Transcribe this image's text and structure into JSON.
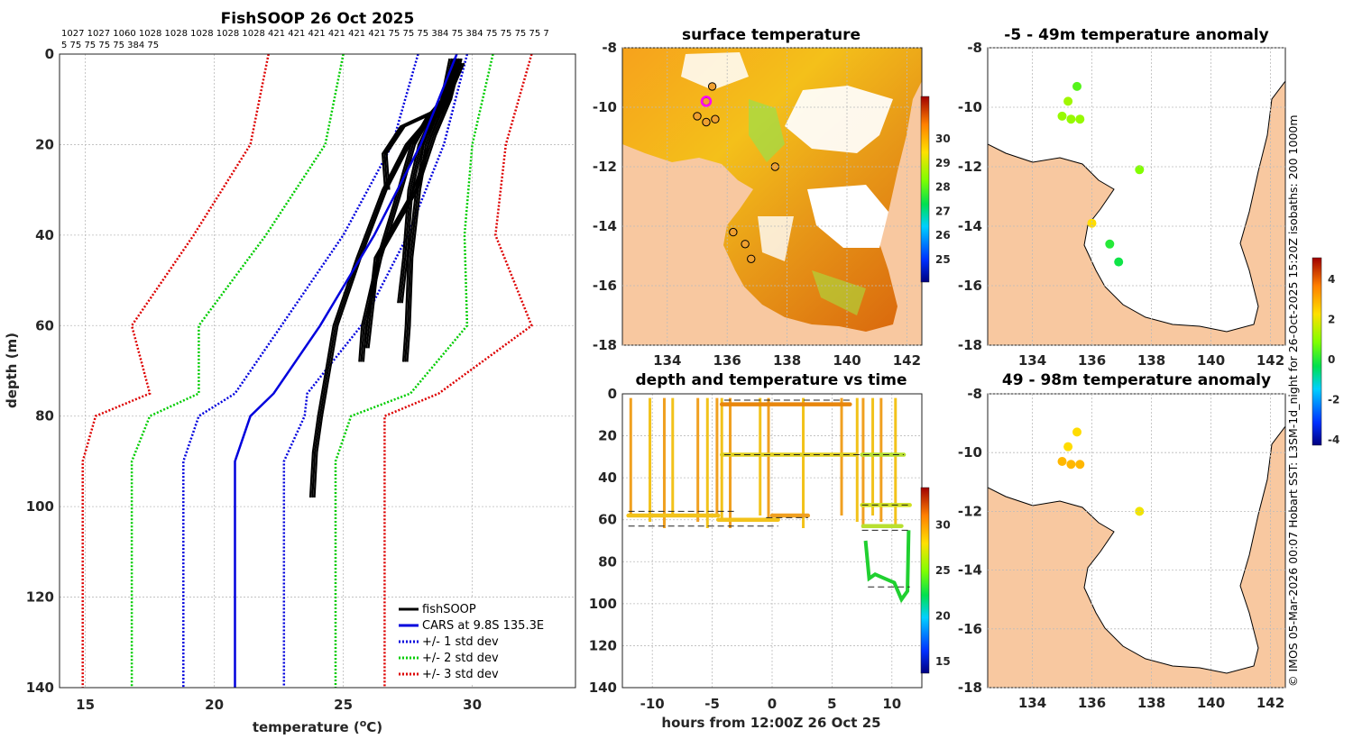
{
  "chart_data": [
    {
      "type": "line",
      "title": "FishSOOP 26 Oct 2025",
      "note_line1": "1027 1027 1060 1028 1028 1028 1028 1028 421 421 421 421 421 421 75 75 75 384 75 384 75 75 75 75 7",
      "note_line2": "5 75 75 75 75 384 75",
      "xlabel": "temperature (°C)",
      "ylabel": "depth (m)",
      "xlim": [
        14,
        34
      ],
      "ylim": [
        140,
        0
      ],
      "xticks": [
        15,
        20,
        25,
        30
      ],
      "yticks": [
        0,
        20,
        40,
        60,
        80,
        100,
        120,
        140
      ],
      "legend": [
        "fishSOOP",
        "CARS at 9.8S 135.3E",
        "+/- 1 std dev",
        "+/- 2 std dev",
        "+/- 3 std dev"
      ],
      "colors": {
        "fishSOOP": "#000000",
        "cars": "#0000dd",
        "sd1": "#0000dd",
        "sd2": "#00cc00",
        "sd3": "#dd0000"
      },
      "cars_depth": [
        0,
        20,
        40,
        60,
        75,
        80,
        90,
        140
      ],
      "cars_mean": [
        29.4,
        28.0,
        26.2,
        24.1,
        22.3,
        21.4,
        20.8,
        20.8
      ],
      "sd1_left": [
        27.9,
        26.9,
        25.0,
        22.6,
        20.8,
        19.4,
        18.8,
        18.8
      ],
      "sd1_right": [
        29.8,
        28.9,
        27.5,
        25.7,
        23.6,
        23.5,
        22.7,
        22.7
      ],
      "sd2_left": [
        25.0,
        24.3,
        22.0,
        19.4,
        19.4,
        17.5,
        16.8,
        16.8
      ],
      "sd2_right": [
        30.8,
        30.0,
        29.7,
        29.8,
        27.6,
        25.3,
        24.7,
        24.7
      ],
      "sd3_left": [
        22.1,
        21.4,
        19.2,
        16.8,
        17.5,
        15.4,
        14.9,
        14.9
      ],
      "sd3_right": [
        32.3,
        31.3,
        30.9,
        32.3,
        28.7,
        26.6,
        26.6,
        26.6
      ],
      "profiles": [
        {
          "depth": [
            1,
            10,
            14,
            20,
            30,
            45,
            60,
            70,
            80,
            88,
            98
          ],
          "temp": [
            29.4,
            29.0,
            28.4,
            27.5,
            26.6,
            25.6,
            24.7,
            24.4,
            24.1,
            23.9,
            23.8
          ]
        },
        {
          "depth": [
            1,
            10,
            14,
            20,
            30,
            45,
            60,
            68
          ],
          "temp": [
            29.3,
            28.9,
            28.3,
            27.7,
            27.2,
            26.4,
            25.8,
            25.7
          ]
        },
        {
          "depth": [
            1,
            10,
            14,
            20,
            30,
            45,
            60,
            68
          ],
          "temp": [
            29.5,
            29.1,
            28.6,
            28.2,
            27.9,
            27.6,
            27.5,
            27.4
          ]
        },
        {
          "depth": [
            2,
            10,
            14,
            20,
            30,
            45,
            55
          ],
          "temp": [
            29.6,
            29.0,
            28.5,
            28.0,
            27.6,
            27.4,
            27.2
          ]
        },
        {
          "depth": [
            1,
            12,
            16,
            22,
            30
          ],
          "temp": [
            29.2,
            28.8,
            27.3,
            26.6,
            26.7
          ]
        },
        {
          "depth": [
            1,
            10,
            18,
            30,
            45,
            65
          ],
          "temp": [
            29.5,
            29.1,
            28.5,
            27.8,
            26.3,
            25.9
          ]
        }
      ]
    },
    {
      "type": "heatmap",
      "title": "surface temperature",
      "xlim": [
        132.5,
        142.5
      ],
      "ylim": [
        -18,
        -8
      ],
      "xticks": [
        134,
        136,
        138,
        140,
        142
      ],
      "yticks": [
        -8,
        -10,
        -12,
        -14,
        -16,
        -18
      ],
      "colorbar_ticks": [
        25,
        26,
        27,
        28,
        29,
        30
      ],
      "stations": [
        [
          135.3,
          -9.8
        ],
        [
          135.5,
          -9.3
        ],
        [
          135.0,
          -10.3
        ],
        [
          135.3,
          -10.5
        ],
        [
          135.6,
          -10.4
        ],
        [
          137.6,
          -12.0
        ],
        [
          136.2,
          -14.2
        ],
        [
          136.6,
          -14.6
        ],
        [
          136.8,
          -15.1
        ]
      ]
    },
    {
      "type": "scatter",
      "title": "depth and temperature vs time",
      "xlabel": "hours from 12:00Z 26 Oct 25",
      "xlim": [
        -12.5,
        12.5
      ],
      "ylim": [
        140,
        0
      ],
      "xticks": [
        -10,
        -5,
        0,
        5,
        10
      ],
      "yticks": [
        0,
        20,
        40,
        60,
        80,
        100,
        120,
        140
      ],
      "colorbar_ticks": [
        15,
        20,
        25,
        30
      ],
      "dashed_depths": [
        [
          -4.0,
          6.5,
          3
        ],
        [
          -4.0,
          11.0,
          29
        ],
        [
          -12.0,
          -3.0,
          56
        ],
        [
          -12.0,
          0.5,
          63
        ],
        [
          -0.5,
          3.0,
          59
        ],
        [
          7.5,
          11.5,
          53
        ],
        [
          7.5,
          11.5,
          65
        ],
        [
          8.0,
          11.5,
          92
        ]
      ]
    },
    {
      "type": "scatter",
      "title": "-5 - 49m temperature anomaly",
      "xlim": [
        132.5,
        142.5
      ],
      "ylim": [
        -18,
        -8
      ],
      "xticks": [
        134,
        136,
        138,
        140,
        142
      ],
      "yticks": [
        -8,
        -10,
        -12,
        -14,
        -16,
        -18
      ],
      "points": [
        [
          135.5,
          -9.3,
          0.3
        ],
        [
          135.2,
          -9.8,
          1.0
        ],
        [
          135.0,
          -10.3,
          0.9
        ],
        [
          135.3,
          -10.4,
          0.9
        ],
        [
          135.6,
          -10.4,
          0.9
        ],
        [
          137.6,
          -12.1,
          0.7
        ],
        [
          136.0,
          -13.9,
          2.0
        ],
        [
          136.6,
          -14.6,
          -0.1
        ],
        [
          136.9,
          -15.2,
          -0.3
        ]
      ]
    },
    {
      "type": "scatter",
      "title": "49 - 98m temperature anomaly",
      "xlim": [
        132.5,
        142.5
      ],
      "ylim": [
        -18,
        -8
      ],
      "xticks": [
        134,
        136,
        138,
        140,
        142
      ],
      "yticks": [
        -8,
        -10,
        -12,
        -14,
        -16,
        -18
      ],
      "points": [
        [
          135.5,
          -9.3,
          2.0
        ],
        [
          135.2,
          -9.8,
          2.0
        ],
        [
          135.0,
          -10.3,
          2.5
        ],
        [
          135.3,
          -10.4,
          2.5
        ],
        [
          135.6,
          -10.4,
          2.5
        ],
        [
          137.6,
          -12.0,
          1.8
        ]
      ],
      "colorbar_ticks": [
        -4,
        -2,
        0,
        2,
        4
      ]
    }
  ],
  "side_credit": "© IMOS 05-Mar-2026 00:07 Hobart SST: L3SM-1d_night for 26-Oct-2025 15:20Z isobaths: 200  1000m"
}
